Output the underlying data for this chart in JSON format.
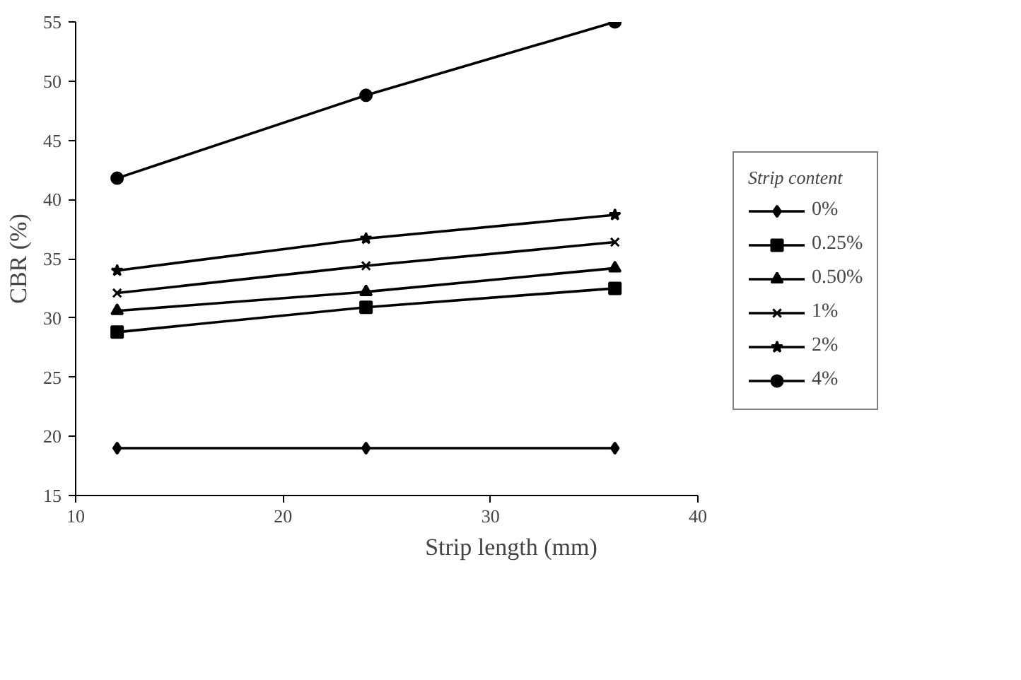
{
  "chart_data": {
    "type": "line",
    "xlabel": "Strip length (mm)",
    "ylabel": "CBR (%)",
    "legend_title": "Strip content",
    "x": [
      12,
      24,
      36
    ],
    "series": [
      {
        "name": "0%",
        "color": "#000000",
        "marker": "diamond",
        "values": [
          19.0,
          19.0,
          19.0
        ]
      },
      {
        "name": "0.25%",
        "color": "#000000",
        "marker": "square",
        "values": [
          28.8,
          30.9,
          32.5
        ]
      },
      {
        "name": "0.50%",
        "color": "#000000",
        "marker": "triangle",
        "values": [
          30.6,
          32.2,
          34.2
        ]
      },
      {
        "name": "1%",
        "color": "#000000",
        "marker": "cross",
        "values": [
          32.1,
          34.4,
          36.4
        ]
      },
      {
        "name": "2%",
        "color": "#000000",
        "marker": "star",
        "values": [
          34.0,
          36.7,
          38.7
        ]
      },
      {
        "name": "4%",
        "color": "#000000",
        "marker": "circle",
        "values": [
          41.8,
          48.8,
          55.0
        ]
      }
    ],
    "xlim": [
      10,
      40
    ],
    "xticks": [
      10,
      20,
      30,
      40
    ],
    "ylim": [
      15,
      55
    ],
    "yticks": [
      15,
      20,
      25,
      30,
      35,
      40,
      45,
      50,
      55
    ],
    "grid": false,
    "legend": "right",
    "line_style": "solid"
  }
}
